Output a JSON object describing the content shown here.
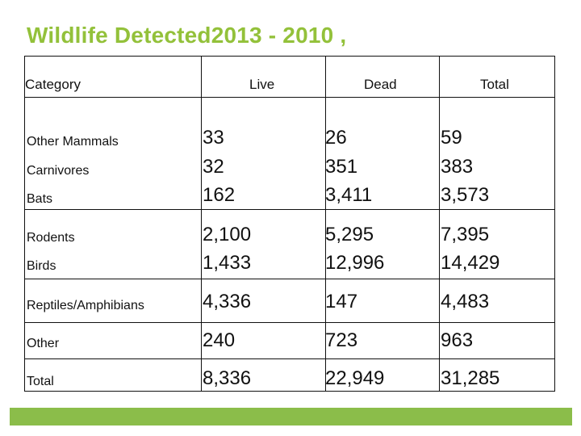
{
  "title": "Wildlife Detected2013 - 2010 ,",
  "headers": {
    "category": "Category",
    "live": "Live",
    "dead": "Dead",
    "total": "Total"
  },
  "categories": {
    "other_mammals": "Other Mammals",
    "carnivores": "Carnivores",
    "bats": "Bats",
    "rodents": "Rodents",
    "birds": "Birds",
    "reptiles": "Reptiles/Amphibians",
    "other": "Other",
    "total": "Total"
  },
  "values": {
    "other_mammals": {
      "live": "33",
      "dead": "26",
      "total": "59"
    },
    "carnivores": {
      "live": "32",
      "dead": "351",
      "total": "383"
    },
    "bats": {
      "live": "162",
      "dead": "3,411",
      "total": "3,573"
    },
    "rodents": {
      "live": "2,100",
      "dead": "5,295",
      "total": "7,395"
    },
    "birds": {
      "live": "1,433",
      "dead": "12,996",
      "total": "14,429"
    },
    "reptiles": {
      "live": "4,336",
      "dead": "147",
      "total": "4,483"
    },
    "other": {
      "live": "240",
      "dead": "723",
      "total": "963"
    },
    "total": {
      "live": "8,336",
      "dead": "22,949",
      "total": "31,285"
    }
  },
  "colors": {
    "title": "#93c13a",
    "footer_bar": "#8bbd4a"
  }
}
